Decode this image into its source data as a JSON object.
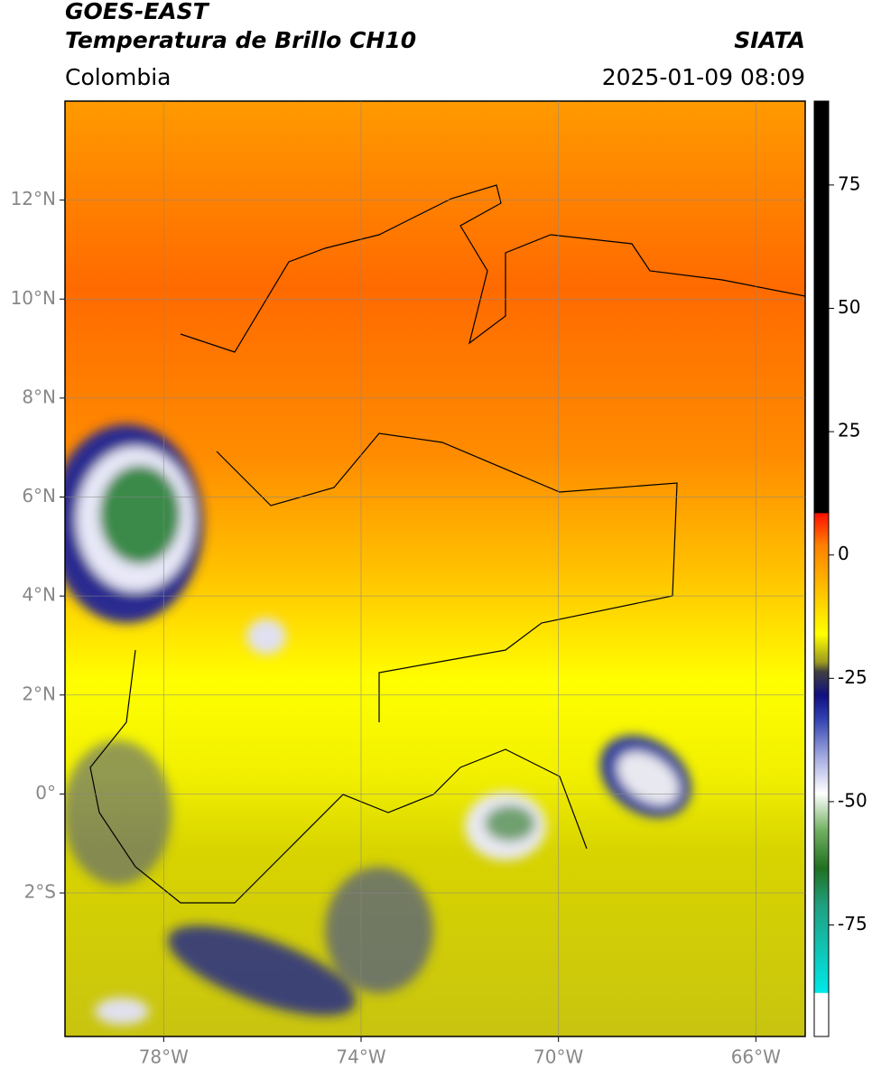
{
  "header": {
    "satellite": "GOES-EAST",
    "product": "Temperatura de Brillo CH10",
    "source": "SIATA",
    "region": "Colombia",
    "datetime": "2025-01-09 08:09"
  },
  "map": {
    "lonlim": [
      -80,
      -65
    ],
    "latlim": [
      -4.9,
      14
    ],
    "lonticks": [
      {
        "value": -78,
        "label": "78°W"
      },
      {
        "value": -74,
        "label": "74°W"
      },
      {
        "value": -70,
        "label": "70°W"
      },
      {
        "value": -66,
        "label": "66°W"
      }
    ],
    "latticks": [
      {
        "value": 12,
        "label": "12°N"
      },
      {
        "value": 10,
        "label": "10°N"
      },
      {
        "value": 8,
        "label": "8°N"
      },
      {
        "value": 6,
        "label": "6°N"
      },
      {
        "value": 4,
        "label": "4°N"
      },
      {
        "value": 2,
        "label": "2°N"
      },
      {
        "value": 0,
        "label": "0°"
      },
      {
        "value": -2,
        "label": "2°S"
      }
    ],
    "grid": true
  },
  "colorbar": {
    "clim": [
      -97.6,
      92
    ],
    "ticks": [
      75,
      50,
      25,
      0,
      -25,
      -50,
      -75
    ]
  }
}
